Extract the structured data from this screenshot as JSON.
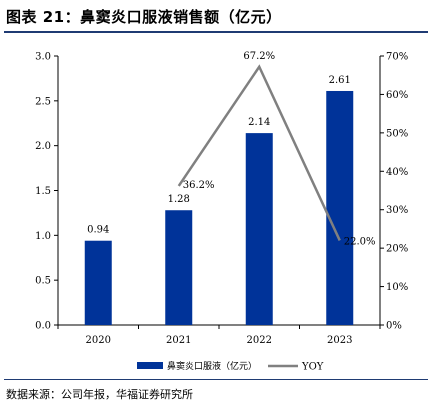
{
  "header": {
    "title": "图表 21：鼻窦炎口服液销售额（亿元）"
  },
  "footer": {
    "source": "数据来源：公司年报，华福证券研究所"
  },
  "chart_data": {
    "type": "bar",
    "categories": [
      "2020",
      "2021",
      "2022",
      "2023"
    ],
    "series": [
      {
        "name": "鼻窦炎口服液（亿元）",
        "type": "bar",
        "axis": "left",
        "values": [
          0.94,
          1.28,
          2.14,
          2.61
        ],
        "labels": [
          "0.94",
          "1.28",
          "2.14",
          "2.61"
        ],
        "color": "#003399"
      },
      {
        "name": "YOY",
        "type": "line",
        "axis": "right",
        "x": [
          "2021",
          "2022",
          "2023"
        ],
        "values": [
          36.2,
          67.2,
          22.0
        ],
        "labels": [
          "36.2%",
          "67.2%",
          "22.0%"
        ],
        "color": "#808080"
      }
    ],
    "y_left": {
      "ylim": [
        0,
        3.0
      ],
      "ticks": [
        "0.0",
        "0.5",
        "1.0",
        "1.5",
        "2.0",
        "2.5",
        "3.0"
      ]
    },
    "y_right": {
      "ylim": [
        0,
        70
      ],
      "ticks": [
        "0%",
        "10%",
        "20%",
        "30%",
        "40%",
        "50%",
        "60%",
        "70%"
      ]
    },
    "legend": "bottom",
    "grid": false
  }
}
